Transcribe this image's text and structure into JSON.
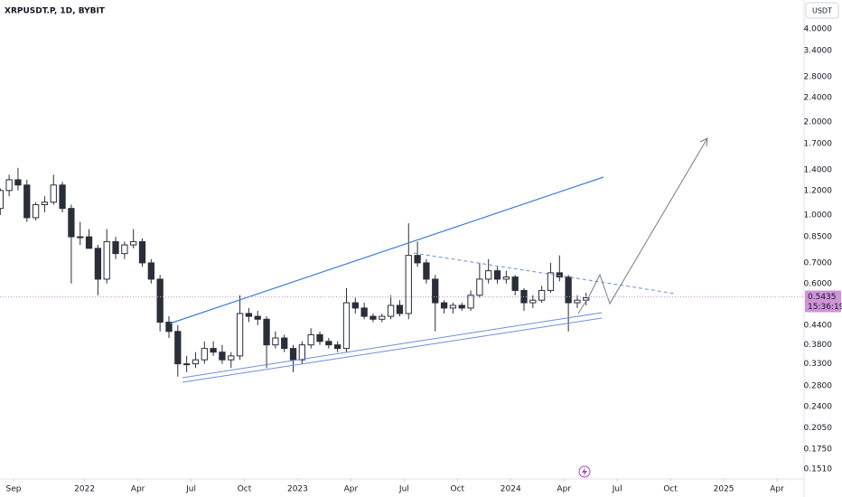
{
  "chart_data": {
    "type": "candlestick",
    "title": "XRPUSDT.P, 1D, BYBIT",
    "currency": "USDT",
    "log_scale": true,
    "color_up": "#ffffff",
    "color_down": "#2a2e39",
    "open": [
      1.05,
      1.2,
      1.3,
      1.25,
      0.98,
      1.08,
      1.1,
      1.25,
      1.05,
      0.85,
      0.85,
      0.78,
      0.62,
      0.82,
      0.75,
      0.8,
      0.82,
      0.7,
      0.62,
      0.45,
      0.42,
      0.33,
      0.33,
      0.34,
      0.37,
      0.36,
      0.34,
      0.35,
      0.48,
      0.47,
      0.46,
      0.38,
      0.4,
      0.37,
      0.34,
      0.38,
      0.41,
      0.39,
      0.38,
      0.37,
      0.52,
      0.5,
      0.47,
      0.46,
      0.47,
      0.51,
      0.48,
      0.74,
      0.7,
      0.62,
      0.52,
      0.5,
      0.51,
      0.5,
      0.55,
      0.62,
      0.66,
      0.62,
      0.63,
      0.57,
      0.52,
      0.53,
      0.57,
      0.65,
      0.63,
      0.52,
      0.53
    ],
    "high": [
      1.22,
      1.35,
      1.42,
      1.3,
      1.1,
      1.15,
      1.35,
      1.28,
      1.08,
      0.95,
      0.9,
      0.8,
      0.9,
      0.85,
      0.82,
      0.9,
      0.84,
      0.72,
      0.64,
      0.47,
      0.44,
      0.35,
      0.36,
      0.39,
      0.39,
      0.38,
      0.36,
      0.55,
      0.5,
      0.49,
      0.47,
      0.42,
      0.41,
      0.38,
      0.39,
      0.43,
      0.42,
      0.4,
      0.39,
      0.58,
      0.54,
      0.52,
      0.48,
      0.48,
      0.55,
      0.53,
      0.94,
      0.82,
      0.72,
      0.64,
      0.53,
      0.52,
      0.52,
      0.57,
      0.7,
      0.72,
      0.68,
      0.66,
      0.64,
      0.58,
      0.55,
      0.59,
      0.7,
      0.74,
      0.64,
      0.55,
      0.56
    ],
    "low": [
      1.0,
      1.15,
      1.2,
      0.95,
      0.96,
      1.02,
      1.08,
      1.02,
      0.6,
      0.8,
      0.78,
      0.55,
      0.6,
      0.72,
      0.72,
      0.78,
      0.68,
      0.6,
      0.42,
      0.4,
      0.3,
      0.31,
      0.32,
      0.33,
      0.35,
      0.33,
      0.32,
      0.34,
      0.45,
      0.44,
      0.32,
      0.37,
      0.36,
      0.31,
      0.33,
      0.37,
      0.38,
      0.37,
      0.36,
      0.36,
      0.48,
      0.46,
      0.45,
      0.45,
      0.46,
      0.47,
      0.46,
      0.68,
      0.6,
      0.42,
      0.48,
      0.48,
      0.49,
      0.49,
      0.54,
      0.6,
      0.6,
      0.6,
      0.55,
      0.49,
      0.5,
      0.52,
      0.56,
      0.61,
      0.42,
      0.5,
      0.51
    ],
    "close": [
      1.2,
      1.3,
      1.25,
      0.98,
      1.08,
      1.1,
      1.25,
      1.05,
      0.85,
      0.85,
      0.78,
      0.62,
      0.82,
      0.75,
      0.8,
      0.82,
      0.7,
      0.62,
      0.45,
      0.42,
      0.33,
      0.33,
      0.34,
      0.37,
      0.36,
      0.34,
      0.35,
      0.48,
      0.47,
      0.46,
      0.38,
      0.4,
      0.37,
      0.34,
      0.38,
      0.41,
      0.39,
      0.38,
      0.37,
      0.52,
      0.5,
      0.47,
      0.46,
      0.47,
      0.51,
      0.48,
      0.74,
      0.7,
      0.62,
      0.52,
      0.5,
      0.51,
      0.5,
      0.55,
      0.62,
      0.66,
      0.62,
      0.63,
      0.57,
      0.52,
      0.53,
      0.57,
      0.65,
      0.63,
      0.52,
      0.53,
      0.54
    ],
    "last_price": 0.5435,
    "last_price_color": "#ce93d8",
    "countdown": "15:36:19",
    "xlim": [
      -0.03,
      90.55
    ],
    "xticks": [
      {
        "value": 1.5,
        "label": "Sep"
      },
      {
        "value": 9.5,
        "label": "2022"
      },
      {
        "value": 15.5,
        "label": "Apr"
      },
      {
        "value": 21.5,
        "label": "Jul"
      },
      {
        "value": 27.5,
        "label": "Oct"
      },
      {
        "value": 33.5,
        "label": "2023"
      },
      {
        "value": 39.5,
        "label": "Apr"
      },
      {
        "value": 45.5,
        "label": "Jul"
      },
      {
        "value": 51.5,
        "label": "Oct"
      },
      {
        "value": 57.5,
        "label": "2024"
      },
      {
        "value": 63.5,
        "label": "Apr"
      },
      {
        "value": 69.5,
        "label": "Jul"
      },
      {
        "value": 75.5,
        "label": "Oct"
      },
      {
        "value": 81.5,
        "label": "2025"
      },
      {
        "value": 87.5,
        "label": "Apr"
      }
    ],
    "ylim": [
      0.14,
      4.96
    ],
    "yticks": [
      {
        "value": 4,
        "label": "4.0000"
      },
      {
        "value": 3.4,
        "label": "3.4000"
      },
      {
        "value": 2.8,
        "label": "2.8000"
      },
      {
        "value": 2.4,
        "label": "2.4000"
      },
      {
        "value": 2,
        "label": "2.0000"
      },
      {
        "value": 1.7,
        "label": "1.7000"
      },
      {
        "value": 1.4,
        "label": "1.4000"
      },
      {
        "value": 1.2,
        "label": "1.2000"
      },
      {
        "value": 1,
        "label": "1.0000"
      },
      {
        "value": 0.85,
        "label": "0.8500"
      },
      {
        "value": 0.7,
        "label": "0.7000"
      },
      {
        "value": 0.6,
        "label": "0.6000"
      },
      {
        "value": 0.44,
        "label": "0.4400"
      },
      {
        "value": 0.38,
        "label": "0.3800"
      },
      {
        "value": 0.33,
        "label": "0.3300"
      },
      {
        "value": 0.28,
        "label": "0.2800"
      },
      {
        "value": 0.24,
        "label": "0.2400"
      },
      {
        "value": 0.205,
        "label": "0.2050"
      },
      {
        "value": 0.175,
        "label": "0.1750"
      },
      {
        "value": 0.151,
        "label": "0.1510"
      }
    ]
  }
}
